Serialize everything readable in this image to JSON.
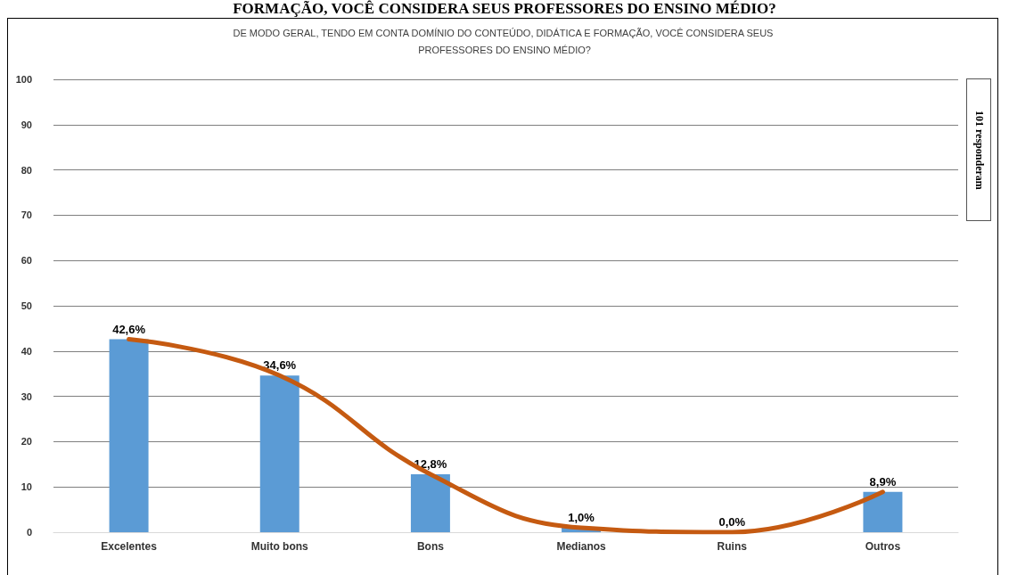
{
  "chart_data": {
    "type": "bar",
    "title": "DE MODO GERAL, TENDO EM CONTA DOMÍNIO DO CONTEÚDO, DIDÁTICA E FORMAÇÃO, VOCÊ CONSIDERA SEUS PROFESSORES DO ENSINO MÉDIO?",
    "annotations": [
      "FORMAÇÃO, VOCÊ CONSIDERA SEUS PROFESSORES DO ENSINO MÉDIO?",
      "101 responderam"
    ],
    "categories": [
      "Excelentes",
      "Muito bons",
      "Bons",
      "Medianos",
      "Ruins",
      "Outros"
    ],
    "series": [
      {
        "color": "#5b9bd5",
        "values": [
          42.6,
          34.6,
          12.8,
          1.0,
          0.0,
          8.9
        ],
        "value_labels": [
          "42,6%",
          "34,6%",
          "12,8%",
          "1,0%",
          "0,0%",
          "8,9%"
        ]
      },
      {
        "type": "line",
        "color": "#c55a11",
        "values": [
          42.6,
          34.6,
          12.8,
          1.0,
          0.0,
          8.9
        ]
      }
    ],
    "ylim": [
      0,
      100
    ],
    "yticks": [
      0,
      10,
      20,
      30,
      40,
      50,
      60,
      70,
      80,
      90,
      100
    ],
    "grid": "y",
    "marker": "none",
    "line_style": "solid"
  }
}
